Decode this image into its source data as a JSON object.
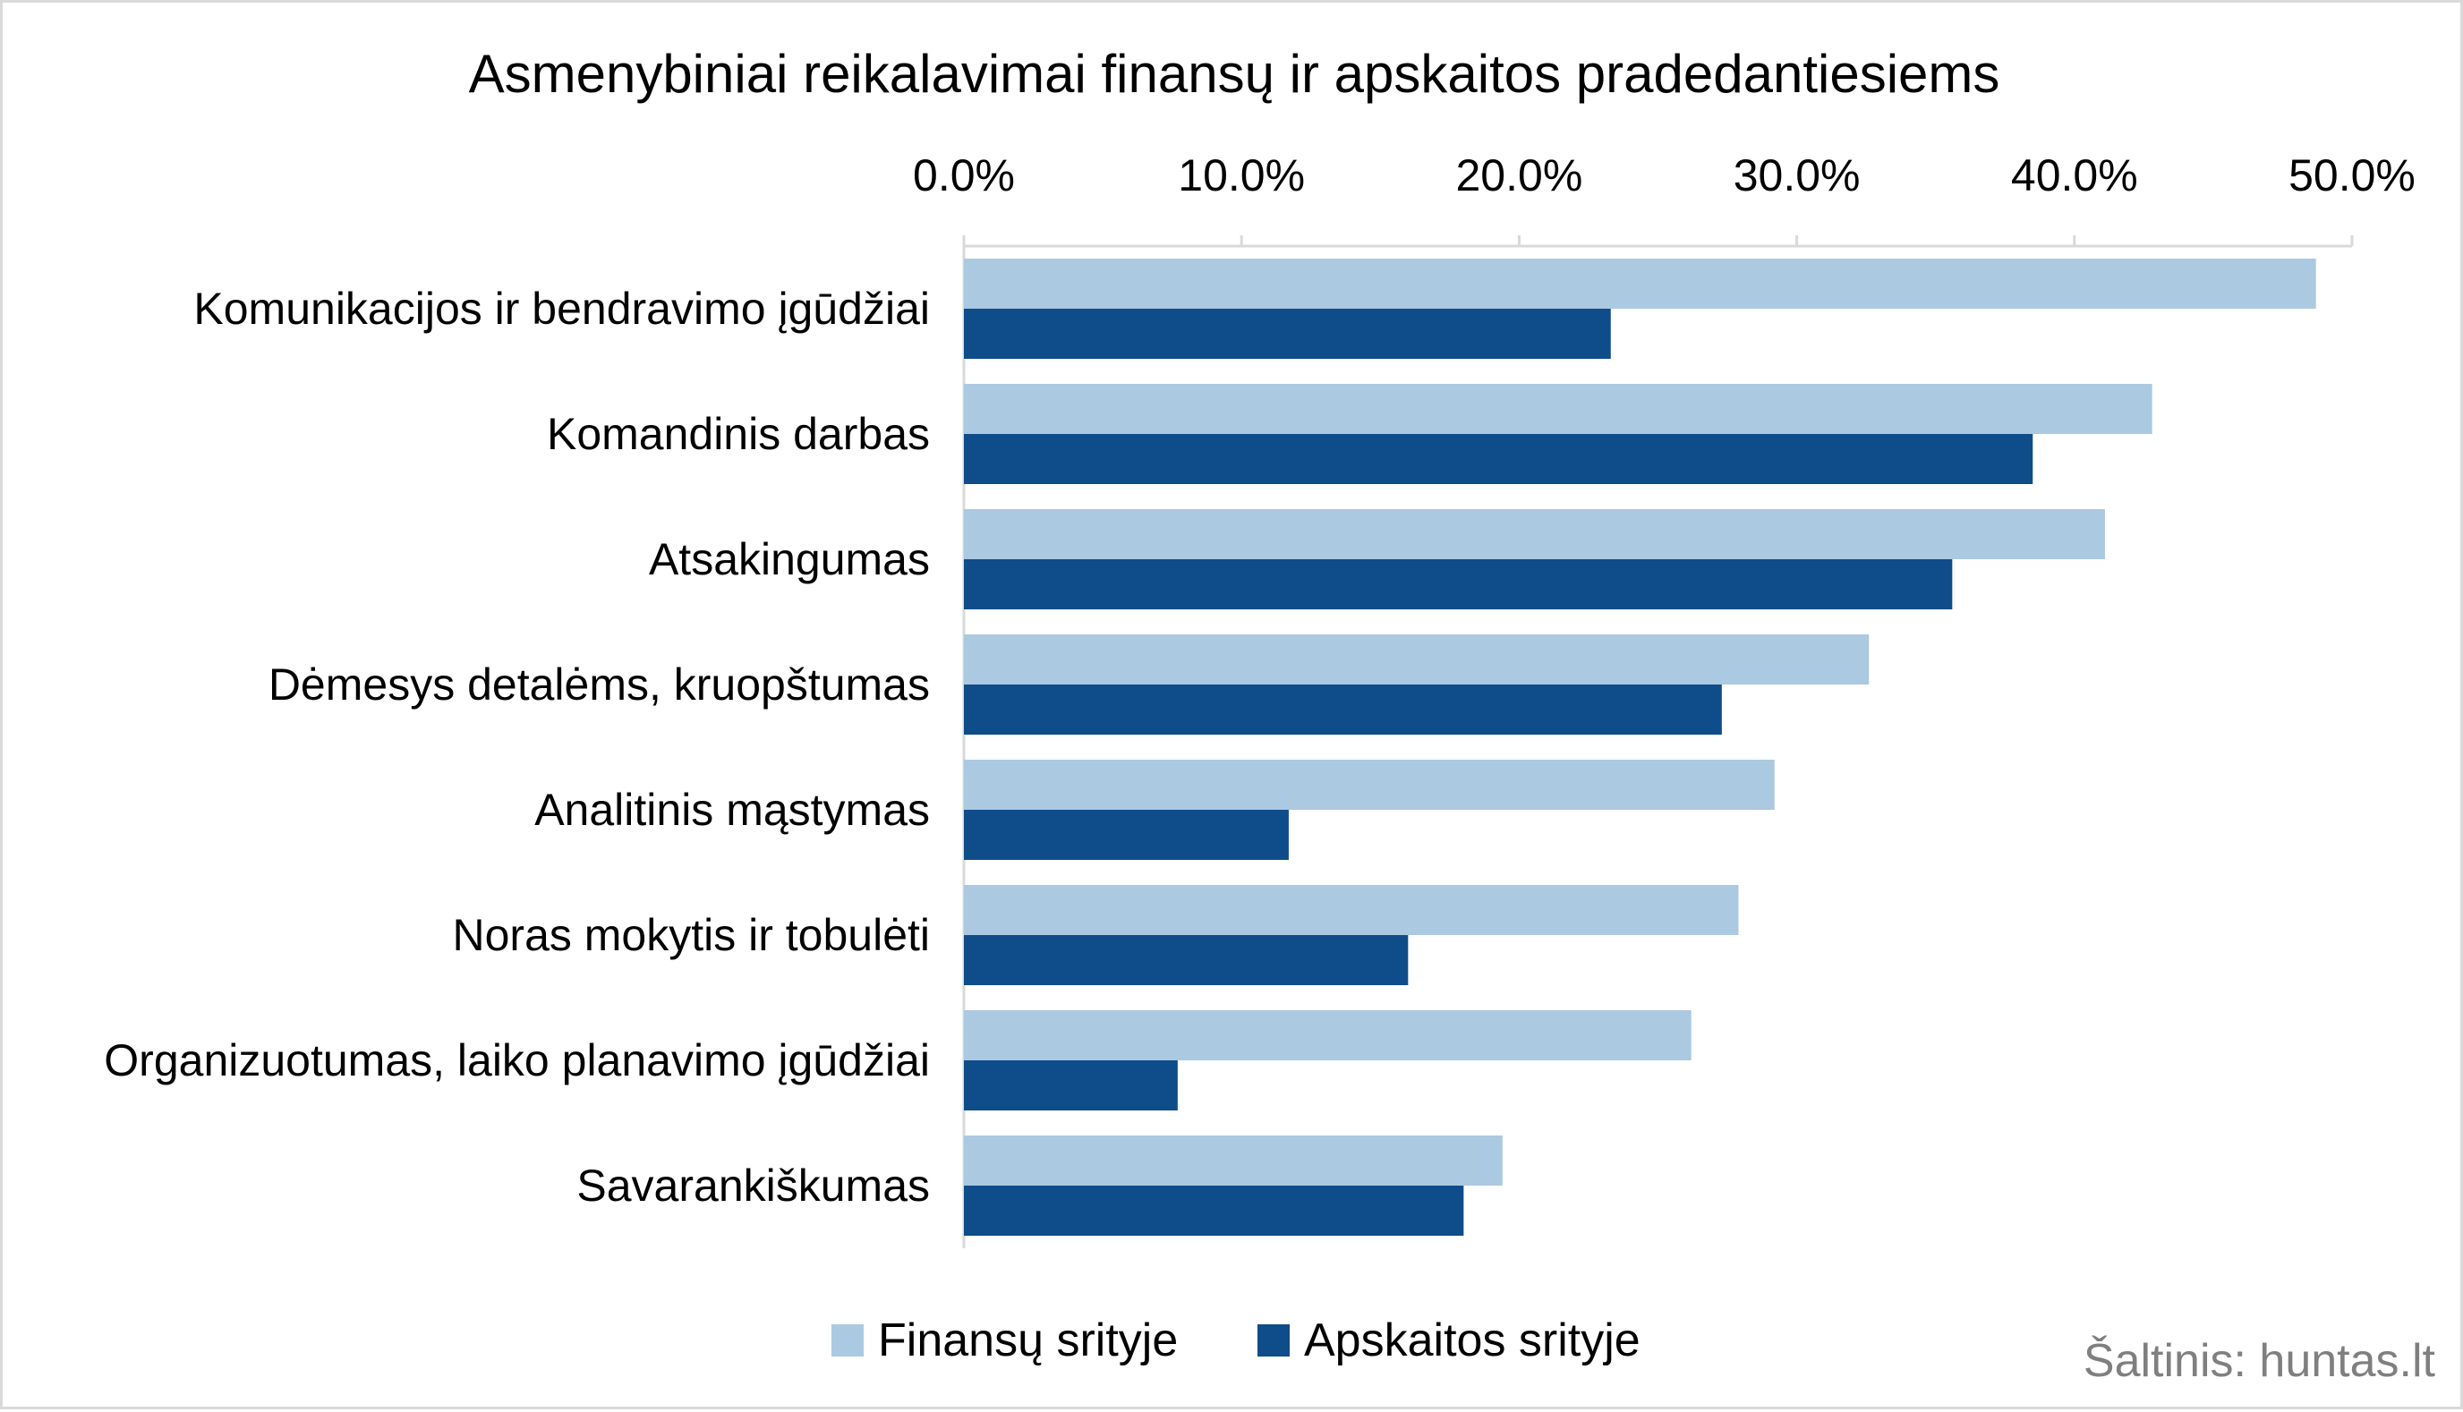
{
  "chart_data": {
    "type": "bar",
    "orientation": "horizontal",
    "title": "Asmenybiniai reikalavimai finansų ir apskaitos pradedantiesiems",
    "categories": [
      "Komunikacijos ir bendravimo įgūdžiai",
      "Komandinis darbas",
      "Atsakingumas",
      "Dėmesys detalėms, kruopštumas",
      "Analitinis mąstymas",
      "Noras mokytis ir tobulėti",
      "Organizuotumas, laiko planavimo įgūdžiai",
      "Savarankiškumas"
    ],
    "series": [
      {
        "name": "Finansų srityje",
        "color": "#abc9e1",
        "values": [
          48.7,
          42.8,
          41.1,
          32.6,
          29.2,
          27.9,
          26.2,
          19.4
        ]
      },
      {
        "name": "Apskaitos srityje",
        "color": "#0f4c8a",
        "values": [
          23.3,
          38.5,
          35.6,
          27.3,
          11.7,
          16.0,
          7.7,
          18.0
        ]
      }
    ],
    "xlim": [
      0,
      50
    ],
    "ticks": [
      "0.0%",
      "10.0%",
      "20.0%",
      "30.0%",
      "40.0%",
      "50.0%"
    ],
    "xaxis_position": "top",
    "grid": false,
    "legend_position": "bottom",
    "source": "Šaltinis: huntas.lt"
  }
}
